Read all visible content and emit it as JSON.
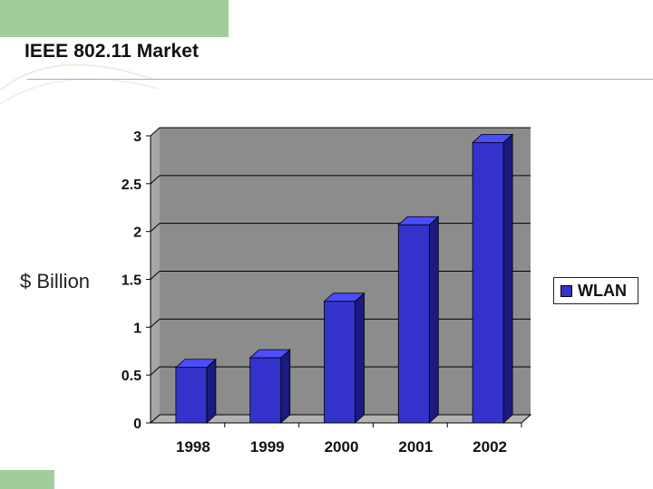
{
  "slide": {
    "title": "IEEE 802.11 Market"
  },
  "colors": {
    "accent_green": "#9fce9b",
    "bar_front": "#3333cc",
    "bar_side": "#1a1a80",
    "bar_top": "#4d4dff",
    "plot_back": "#8c8c8c",
    "plot_floor": "#b3b3b3"
  },
  "chart_data": {
    "type": "bar",
    "categories": [
      "1998",
      "1999",
      "2000",
      "2001",
      "2002"
    ],
    "series": [
      {
        "name": "WLAN",
        "values": [
          0.58,
          0.68,
          1.27,
          2.07,
          2.93
        ]
      }
    ],
    "title": "",
    "xlabel": "",
    "ylabel": "$ Billion",
    "ylim": [
      0,
      3
    ],
    "yticks": [
      "0",
      "0.5",
      "1",
      "1.5",
      "2",
      "2.5",
      "3"
    ],
    "grid": true,
    "legend": "right",
    "three_d": true
  }
}
